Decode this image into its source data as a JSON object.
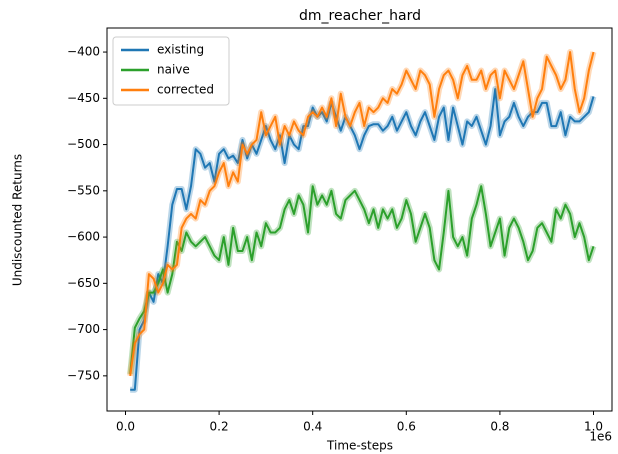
{
  "chart_data": {
    "type": "line",
    "title": "dm_reacher_hard",
    "xlabel": "Time-steps",
    "ylabel": "Undiscounted Returns",
    "x_offset_label": "1e6",
    "x": [
      10000,
      20000,
      30000,
      40000,
      50000,
      60000,
      70000,
      80000,
      90000,
      100000,
      110000,
      120000,
      130000,
      140000,
      150000,
      160000,
      170000,
      180000,
      190000,
      200000,
      210000,
      220000,
      230000,
      240000,
      250000,
      260000,
      270000,
      280000,
      290000,
      300000,
      310000,
      320000,
      330000,
      340000,
      350000,
      360000,
      370000,
      380000,
      390000,
      400000,
      410000,
      420000,
      430000,
      440000,
      450000,
      460000,
      470000,
      480000,
      490000,
      500000,
      510000,
      520000,
      530000,
      540000,
      550000,
      560000,
      570000,
      580000,
      590000,
      600000,
      610000,
      620000,
      630000,
      640000,
      650000,
      660000,
      670000,
      680000,
      690000,
      700000,
      710000,
      720000,
      730000,
      740000,
      750000,
      760000,
      770000,
      780000,
      790000,
      800000,
      810000,
      820000,
      830000,
      840000,
      850000,
      860000,
      870000,
      880000,
      890000,
      900000,
      910000,
      920000,
      930000,
      940000,
      950000,
      960000,
      970000,
      980000,
      990000,
      1000000
    ],
    "series": [
      {
        "name": "existing",
        "color": "#1f77b4",
        "values": [
          -765,
          -765,
          -700,
          -690,
          -660,
          -670,
          -640,
          -650,
          -610,
          -565,
          -548,
          -548,
          -570,
          -545,
          -505,
          -510,
          -525,
          -520,
          -540,
          -510,
          -505,
          -515,
          -512,
          -520,
          -495,
          -515,
          -500,
          -510,
          -495,
          -480,
          -495,
          -505,
          -490,
          -520,
          -490,
          -500,
          -505,
          -480,
          -480,
          -460,
          -470,
          -465,
          -475,
          -455,
          -470,
          -485,
          -470,
          -480,
          -490,
          -505,
          -490,
          -480,
          -478,
          -478,
          -485,
          -480,
          -470,
          -485,
          -475,
          -465,
          -480,
          -490,
          -475,
          -465,
          -480,
          -495,
          -470,
          -460,
          -495,
          -460,
          -480,
          -500,
          -475,
          -480,
          -470,
          -485,
          -500,
          -480,
          -440,
          -490,
          -475,
          -470,
          -455,
          -470,
          -480,
          -470,
          -465,
          -465,
          -455,
          -455,
          -480,
          -480,
          -465,
          -490,
          -470,
          -475,
          -475,
          -470,
          -465,
          -448
        ]
      },
      {
        "name": "naive",
        "color": "#2ca02c",
        "values": [
          -748,
          -698,
          -688,
          -680,
          -660,
          -660,
          -650,
          -635,
          -660,
          -640,
          -605,
          -615,
          -595,
          -605,
          -610,
          -605,
          -600,
          -610,
          -620,
          -625,
          -600,
          -630,
          -590,
          -615,
          -615,
          -600,
          -625,
          -595,
          -610,
          -585,
          -595,
          -595,
          -590,
          -570,
          -560,
          -575,
          -555,
          -565,
          -595,
          -545,
          -565,
          -555,
          -565,
          -550,
          -575,
          -580,
          -560,
          -555,
          -550,
          -560,
          -570,
          -585,
          -570,
          -590,
          -570,
          -580,
          -570,
          -590,
          -580,
          -560,
          -575,
          -605,
          -590,
          -575,
          -590,
          -625,
          -635,
          -595,
          -550,
          -600,
          -610,
          -600,
          -620,
          -580,
          -565,
          -545,
          -575,
          -610,
          -595,
          -580,
          -620,
          -590,
          -580,
          -590,
          -605,
          -625,
          -615,
          -590,
          -585,
          -595,
          -605,
          -570,
          -580,
          -565,
          -575,
          -600,
          -585,
          -600,
          -625,
          -610
        ]
      },
      {
        "name": "corrected",
        "color": "#ff7f0e",
        "values": [
          -750,
          -715,
          -705,
          -700,
          -640,
          -645,
          -660,
          -650,
          -630,
          -635,
          -630,
          -590,
          -580,
          -575,
          -580,
          -560,
          -565,
          -550,
          -545,
          -530,
          -520,
          -545,
          -530,
          -540,
          -500,
          -510,
          -500,
          -495,
          -465,
          -490,
          -480,
          -470,
          -500,
          -480,
          -490,
          -475,
          -485,
          -490,
          -470,
          -465,
          -470,
          -460,
          -470,
          -450,
          -480,
          -445,
          -470,
          -480,
          -465,
          -455,
          -480,
          -460,
          -465,
          -460,
          -450,
          -455,
          -440,
          -445,
          -435,
          -420,
          -430,
          -440,
          -420,
          -425,
          -435,
          -470,
          -440,
          -425,
          -420,
          -430,
          -450,
          -425,
          -415,
          -430,
          -430,
          -420,
          -440,
          -425,
          -420,
          -450,
          -420,
          -430,
          -440,
          -425,
          -410,
          -440,
          -470,
          -450,
          -440,
          -405,
          -415,
          -425,
          -440,
          -430,
          -400,
          -440,
          -465,
          -450,
          -420,
          -400
        ]
      }
    ],
    "xlim": [
      -39500,
      1039500
    ],
    "ylim": [
      -788,
      -374
    ],
    "xticks": [
      {
        "value": 0,
        "label": "0.0"
      },
      {
        "value": 200000,
        "label": "0.2"
      },
      {
        "value": 400000,
        "label": "0.4"
      },
      {
        "value": 600000,
        "label": "0.6"
      },
      {
        "value": 800000,
        "label": "0.8"
      },
      {
        "value": 1000000,
        "label": "1.0"
      }
    ],
    "yticks": [
      {
        "value": -750,
        "label": "−750"
      },
      {
        "value": -700,
        "label": "−700"
      },
      {
        "value": -650,
        "label": "−650"
      },
      {
        "value": -600,
        "label": "−600"
      },
      {
        "value": -550,
        "label": "−550"
      },
      {
        "value": -500,
        "label": "−500"
      },
      {
        "value": -450,
        "label": "−450"
      },
      {
        "value": -400,
        "label": "−400"
      }
    ],
    "legend": "upper left",
    "grid": false
  }
}
